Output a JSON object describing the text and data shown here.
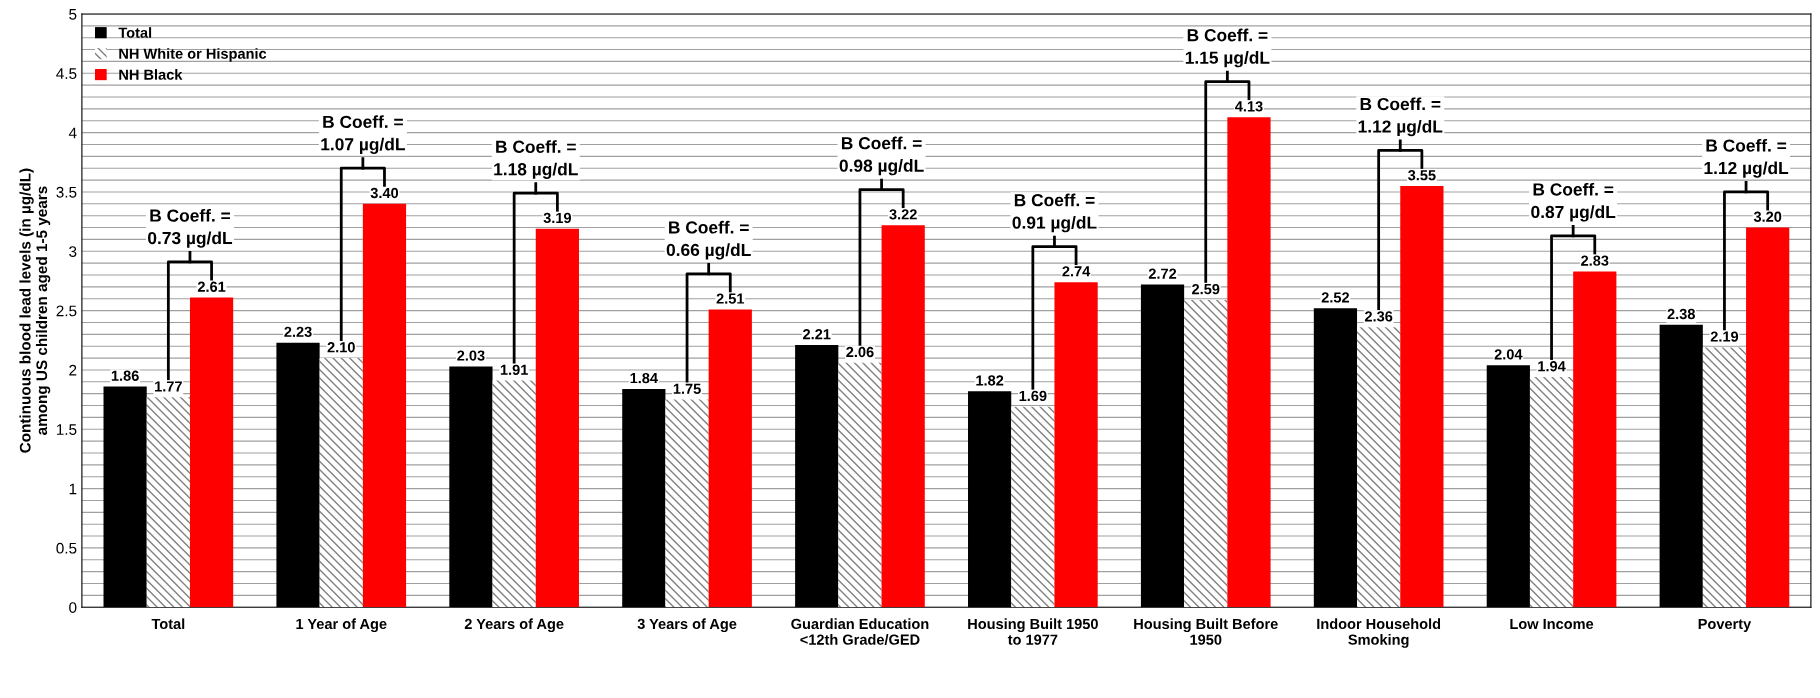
{
  "chart_data": {
    "type": "bar",
    "ylabel": "Continuous blood lead levels (in µg/dL)\namong US children aged 1-5 years",
    "categories": [
      "Total",
      "1 Year of Age",
      "2 Years of Age",
      "3 Years of Age",
      "Guardian Education\n<12th Grade/GED",
      "Housing Built 1950\nto 1977",
      "Housing Built Before\n1950",
      "Indoor Household\nSmoking",
      "Low Income",
      "Poverty"
    ],
    "series": [
      {
        "name": "Total",
        "color": "#000000",
        "values": [
          1.86,
          2.23,
          2.03,
          1.84,
          2.21,
          1.82,
          2.72,
          2.52,
          2.04,
          2.38
        ],
        "value_labels": [
          "1.86",
          "2.23",
          "2.03",
          "1.84",
          "2.21",
          "1.82",
          "2.72",
          "2.52",
          "2.04",
          "2.38"
        ]
      },
      {
        "name": "NH White or Hispanic",
        "color": "#808080",
        "values": [
          1.77,
          2.1,
          1.91,
          1.75,
          2.06,
          1.69,
          2.59,
          2.36,
          1.94,
          2.19
        ],
        "value_labels": [
          "1.77",
          "2.10",
          "1.91",
          "1.75",
          "2.06",
          "1.69",
          "2.59",
          "2.36",
          "1.94",
          "2.19"
        ]
      },
      {
        "name": "NH Black",
        "color": "#ff0000",
        "values": [
          2.61,
          3.4,
          3.19,
          2.51,
          3.22,
          2.74,
          4.13,
          3.55,
          2.83,
          3.2
        ],
        "value_labels": [
          "2.61",
          "3.40",
          "3.19",
          "2.51",
          "3.22",
          "2.74",
          "4.13",
          "3.55",
          "2.83",
          "3.20"
        ]
      }
    ],
    "annotations": [
      "B Coeff. =\n0.73 µg/dL",
      "B Coeff. =\n1.07 µg/dL",
      "B Coeff. =\n1.18 µg/dL",
      "B Coeff. =\n0.66 µg/dL",
      "B Coeff. =\n0.98 µg/dL",
      "B Coeff. =\n0.91 µg/dL",
      "B Coeff. =\n1.15 µg/dL",
      "B Coeff. =\n1.12 µg/dL",
      "B Coeff. =\n0.87 µg/dL",
      "B Coeff. =\n1.12 µg/dL"
    ],
    "ylim": [
      0,
      5
    ],
    "yticks": [
      0,
      {
        "value": 0.1,
        "label": null
      },
      {
        "value": 0.2,
        "label": null
      },
      {
        "value": 0.3,
        "label": null
      },
      {
        "value": 0.4,
        "label": null
      },
      0.5,
      {
        "value": 0.6,
        "label": null
      },
      {
        "value": 0.7,
        "label": null
      },
      {
        "value": 0.8,
        "label": null
      },
      {
        "value": 0.9,
        "label": null
      },
      1,
      {
        "value": 1.1,
        "label": null
      },
      {
        "value": 1.2,
        "label": null
      },
      {
        "value": 1.3,
        "label": null
      },
      {
        "value": 1.4,
        "label": null
      },
      1.5,
      {
        "value": 1.6,
        "label": null
      },
      {
        "value": 1.7,
        "label": null
      },
      {
        "value": 1.8,
        "label": null
      },
      {
        "value": 1.9,
        "label": null
      },
      2,
      {
        "value": 2.1,
        "label": null
      },
      {
        "value": 2.2,
        "label": null
      },
      {
        "value": 2.3,
        "label": null
      },
      {
        "value": 2.4,
        "label": null
      },
      2.5,
      {
        "value": 2.6,
        "label": null
      },
      {
        "value": 2.7,
        "label": null
      },
      {
        "value": 2.8,
        "label": null
      },
      {
        "value": 2.9,
        "label": null
      },
      3,
      {
        "value": 3.1,
        "label": null
      },
      {
        "value": 3.2,
        "label": null
      },
      {
        "value": 3.3,
        "label": null
      },
      {
        "value": 3.4,
        "label": null
      },
      3.5,
      {
        "value": 3.6,
        "label": null
      },
      {
        "value": 3.7,
        "label": null
      },
      {
        "value": 3.8,
        "label": null
      },
      {
        "value": 3.9,
        "label": null
      },
      4,
      {
        "value": 4.1,
        "label": null
      },
      {
        "value": 4.2,
        "label": null
      },
      {
        "value": 4.3,
        "label": null
      },
      {
        "value": 4.4,
        "label": null
      },
      4.5,
      {
        "value": 4.6,
        "label": null
      },
      {
        "value": 4.7,
        "label": null
      },
      {
        "value": 4.8,
        "label": null
      },
      {
        "value": 4.9,
        "label": null
      },
      5
    ],
    "grid": "y",
    "legend": "top left"
  }
}
